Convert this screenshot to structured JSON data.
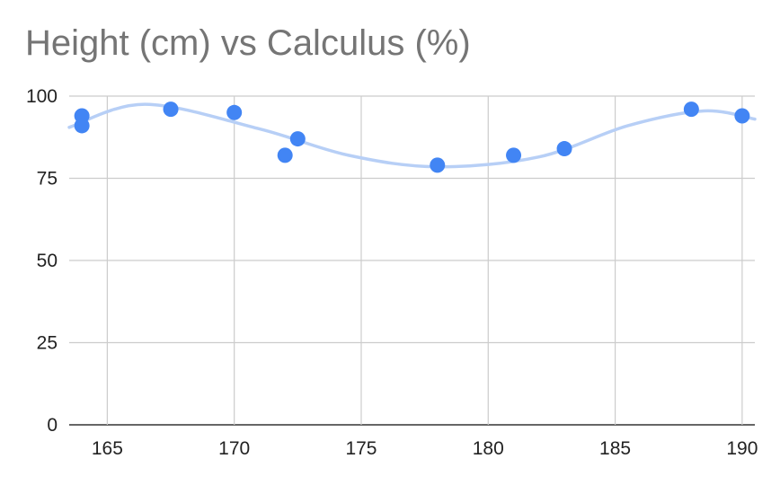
{
  "chart_data": {
    "type": "scatter",
    "title": "Height (cm) vs Calculus (%)",
    "xlabel": "",
    "ylabel": "",
    "xlim": [
      163.5,
      190.5
    ],
    "ylim": [
      0,
      100
    ],
    "x_ticks": [
      165,
      170,
      175,
      180,
      185,
      190
    ],
    "y_ticks": [
      0,
      25,
      50,
      75,
      100
    ],
    "grid": true,
    "legend": "none",
    "point_color": "#4285f4",
    "trendline_color": "#b7cff6",
    "points": [
      {
        "x": 164,
        "y": 94
      },
      {
        "x": 164,
        "y": 91
      },
      {
        "x": 167.5,
        "y": 96
      },
      {
        "x": 170,
        "y": 95
      },
      {
        "x": 172,
        "y": 82
      },
      {
        "x": 172.5,
        "y": 87
      },
      {
        "x": 178,
        "y": 79
      },
      {
        "x": 181,
        "y": 82
      },
      {
        "x": 183,
        "y": 84
      },
      {
        "x": 188,
        "y": 96
      },
      {
        "x": 190,
        "y": 94
      }
    ],
    "trendline": {
      "type": "smooth",
      "points": [
        {
          "x": 163.5,
          "y": 90.5
        },
        {
          "x": 166.5,
          "y": 97.5
        },
        {
          "x": 171,
          "y": 90
        },
        {
          "x": 174.5,
          "y": 82
        },
        {
          "x": 178,
          "y": 78.5
        },
        {
          "x": 182,
          "y": 81.5
        },
        {
          "x": 185.5,
          "y": 91
        },
        {
          "x": 188.5,
          "y": 95.5
        },
        {
          "x": 190.5,
          "y": 93
        }
      ]
    }
  }
}
